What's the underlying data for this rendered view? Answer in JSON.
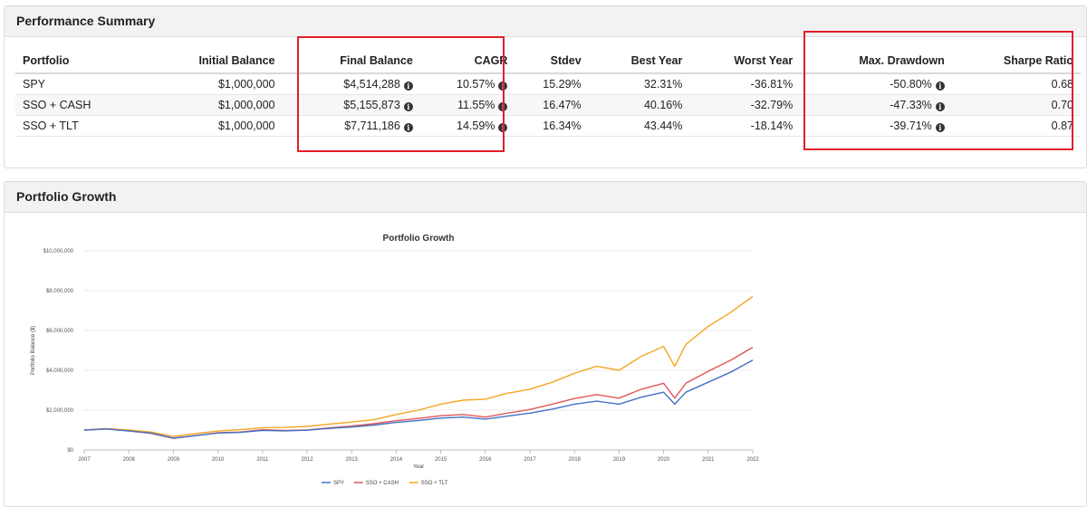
{
  "summary": {
    "title": "Performance Summary",
    "columns": [
      "Portfolio",
      "Initial Balance",
      "Final Balance",
      "CAGR",
      "Stdev",
      "Best Year",
      "Worst Year",
      "Max. Drawdown",
      "Sharpe Ratio"
    ],
    "rows": [
      {
        "portfolio": "SPY",
        "initial": "$1,000,000",
        "final": "$4,514,288",
        "cagr": "10.57%",
        "stdev": "15.29%",
        "best": "32.31%",
        "worst": "-36.81%",
        "maxdd": "-50.80%",
        "sharpe": "0.68"
      },
      {
        "portfolio": "SSO + CASH",
        "initial": "$1,000,000",
        "final": "$5,155,873",
        "cagr": "11.55%",
        "stdev": "16.47%",
        "best": "40.16%",
        "worst": "-32.79%",
        "maxdd": "-47.33%",
        "sharpe": "0.70"
      },
      {
        "portfolio": "SSO + TLT",
        "initial": "$1,000,000",
        "final": "$7,711,186",
        "cagr": "14.59%",
        "stdev": "16.34%",
        "best": "43.44%",
        "worst": "-18.14%",
        "maxdd": "-39.71%",
        "sharpe": "0.87"
      }
    ],
    "info_icon": "info-circle-icon",
    "highlight_color": "#e0202a"
  },
  "growth": {
    "title": "Portfolio Growth"
  },
  "chart_data": {
    "type": "line",
    "title": "Portfolio Growth",
    "xlabel": "Year",
    "ylabel": "Portfolio Balance ($)",
    "x_ticks": [
      "2007",
      "2008",
      "2009",
      "2010",
      "2011",
      "2012",
      "2013",
      "2014",
      "2015",
      "2016",
      "2017",
      "2018",
      "2019",
      "2020",
      "2021",
      "2022"
    ],
    "y_ticks": [
      "$0",
      "$2,000,000",
      "$4,000,000",
      "$6,000,000",
      "$8,000,000",
      "$10,000,000"
    ],
    "ylim": [
      0,
      10000000
    ],
    "xlim": [
      2007,
      2022
    ],
    "legend_position": "bottom",
    "grid": true,
    "x": [
      2007,
      2007.5,
      2008,
      2008.5,
      2009,
      2009.5,
      2010,
      2010.5,
      2011,
      2011.5,
      2012,
      2012.5,
      2013,
      2013.5,
      2014,
      2014.5,
      2015,
      2015.5,
      2016,
      2016.5,
      2017,
      2017.5,
      2018,
      2018.5,
      2019,
      2019.5,
      2020,
      2020.25,
      2020.5,
      2021,
      2021.5,
      2022
    ],
    "series": [
      {
        "name": "SPY",
        "color": "#4472c4",
        "values": [
          1000000,
          1050000,
          950000,
          850000,
          600000,
          720000,
          850000,
          880000,
          980000,
          960000,
          990000,
          1080000,
          1150000,
          1250000,
          1380000,
          1480000,
          1600000,
          1650000,
          1550000,
          1700000,
          1850000,
          2050000,
          2300000,
          2450000,
          2300000,
          2650000,
          2900000,
          2300000,
          2900000,
          3400000,
          3900000,
          4514288
        ]
      },
      {
        "name": "SSO + CASH",
        "color": "#e15759",
        "values": [
          1000000,
          1060000,
          960000,
          830000,
          580000,
          720000,
          870000,
          900000,
          1020000,
          980000,
          1000000,
          1110000,
          1200000,
          1320000,
          1470000,
          1580000,
          1720000,
          1780000,
          1650000,
          1850000,
          2030000,
          2300000,
          2580000,
          2780000,
          2600000,
          3050000,
          3350000,
          2600000,
          3350000,
          3950000,
          4500000,
          5155873
        ]
      },
      {
        "name": "SSO + TLT",
        "color": "#f5a623",
        "values": [
          1000000,
          1070000,
          1000000,
          900000,
          680000,
          820000,
          950000,
          1020000,
          1120000,
          1130000,
          1180000,
          1300000,
          1400000,
          1520000,
          1780000,
          2000000,
          2300000,
          2500000,
          2550000,
          2850000,
          3050000,
          3400000,
          3850000,
          4200000,
          4000000,
          4700000,
          5200000,
          4200000,
          5300000,
          6200000,
          6900000,
          7711186
        ]
      }
    ]
  }
}
